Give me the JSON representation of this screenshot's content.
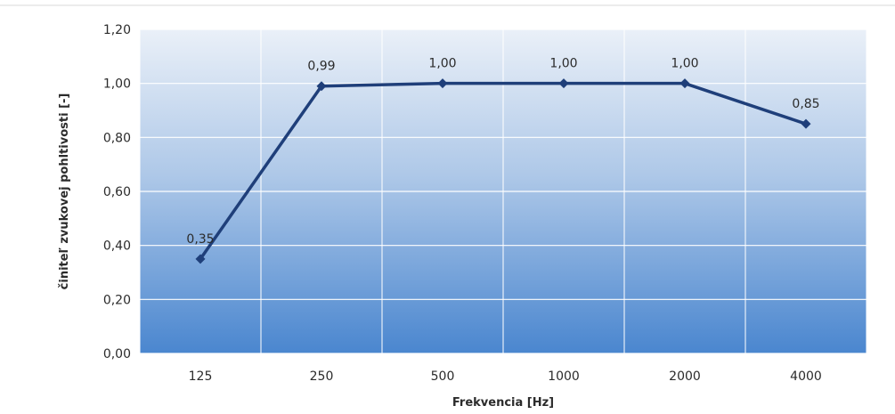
{
  "chart_data": {
    "type": "line",
    "title": "",
    "xlabel": "Frekvencia [Hz]",
    "ylabel": "činiteľ zvukovej pohltivosti [-]",
    "categories": [
      "125",
      "250",
      "500",
      "1000",
      "2000",
      "4000"
    ],
    "series": [
      {
        "name": "",
        "values": [
          0.35,
          0.99,
          1.0,
          1.0,
          1.0,
          0.85
        ],
        "data_labels": [
          "0,35",
          "0,99",
          "1,00",
          "1,00",
          "1,00",
          "0,85"
        ]
      }
    ],
    "ylim": [
      0,
      1.2
    ],
    "yticks": [
      0,
      0.2,
      0.4,
      0.6,
      0.8,
      1.0,
      1.2
    ],
    "ytick_labels": [
      "0,00",
      "0,20",
      "0,40",
      "0,60",
      "0,80",
      "1,00",
      "1,20"
    ],
    "grid": true,
    "legend": "none",
    "colors": {
      "line": "#1f3f7a",
      "plot_bg_top": "#eaf0f8",
      "plot_bg_bottom": "#4a86cf"
    }
  }
}
